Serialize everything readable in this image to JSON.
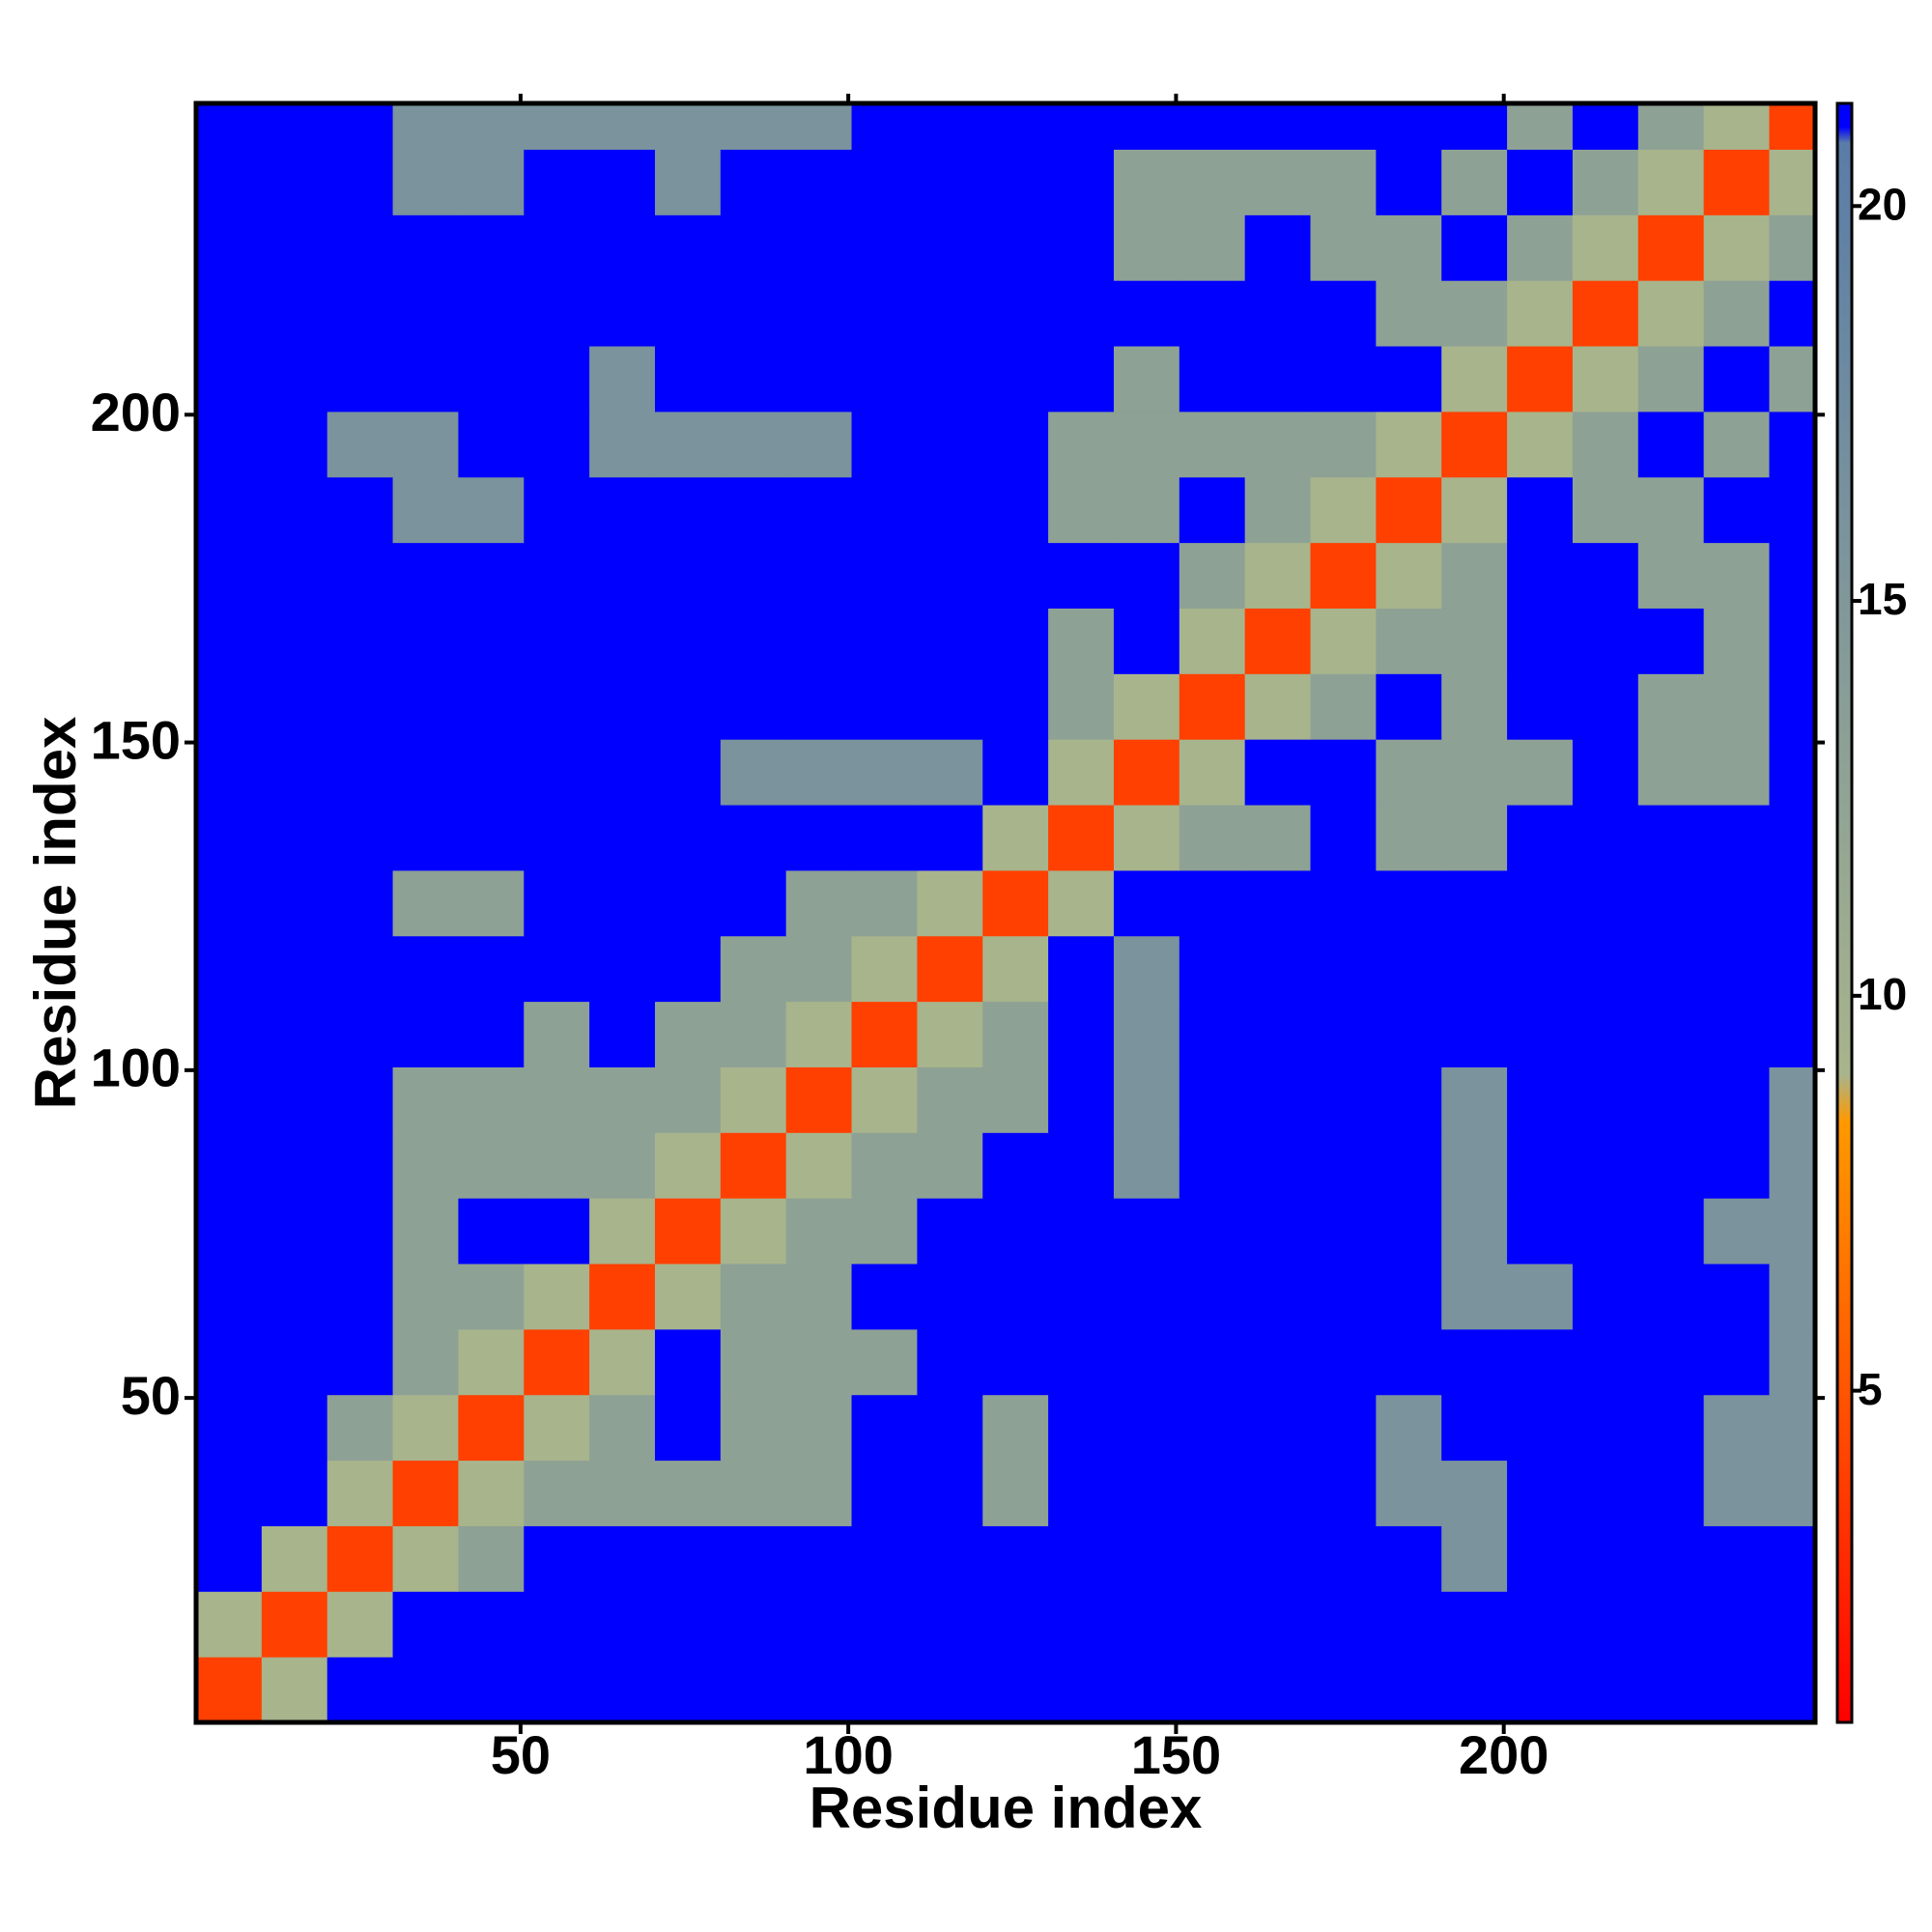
{
  "chart_data": {
    "type": "heatmap",
    "x_label": "Residue index",
    "y_label": "Residue index",
    "bins": [
      0.5,
      10.5,
      20.5,
      30.5,
      40.5,
      50.5,
      60.5,
      70.5,
      80.5,
      90.5,
      100.5,
      110.5,
      120.5,
      130.5,
      140.5,
      150.5,
      160.5,
      170.5,
      180.5,
      190.5,
      200.5,
      210.5,
      220.5,
      230.5,
      240.5,
      247.5
    ],
    "xlim": [
      0.5,
      247.5
    ],
    "ylim": [
      0.5,
      247.5
    ],
    "xticks": [
      50,
      100,
      150,
      200
    ],
    "yticks": [
      50,
      100,
      150,
      200
    ],
    "zlim": [
      0.8,
      21.3
    ],
    "zticks": [
      5,
      10,
      15,
      20
    ],
    "colorscale": [
      [
        0.8,
        "#ff0000"
      ],
      [
        8.4,
        "#ff9900"
      ],
      [
        9,
        "#a8b48c"
      ],
      [
        20.8,
        "#5a7ca8"
      ],
      [
        21,
        "#0000ff"
      ]
    ],
    "z": [
      [
        4,
        9,
        21,
        21,
        21,
        21,
        21,
        21,
        21,
        21,
        21,
        21,
        21,
        21,
        21,
        21,
        21,
        21,
        21,
        21,
        21,
        21,
        21,
        21,
        21
      ],
      [
        9,
        4,
        9,
        21,
        21,
        21,
        21,
        21,
        21,
        21,
        21,
        21,
        21,
        21,
        21,
        21,
        21,
        21,
        21,
        21,
        21,
        21,
        21,
        21,
        21
      ],
      [
        21,
        9,
        4,
        9,
        13,
        21,
        21,
        21,
        21,
        21,
        21,
        21,
        21,
        21,
        21,
        21,
        21,
        21,
        21,
        16,
        21,
        21,
        21,
        21,
        21
      ],
      [
        21,
        21,
        9,
        4,
        9,
        13,
        13,
        13,
        13,
        13,
        21,
        21,
        13,
        21,
        21,
        21,
        21,
        21,
        16,
        16,
        21,
        21,
        21,
        16,
        16
      ],
      [
        21,
        21,
        13,
        9,
        4,
        9,
        13,
        21,
        13,
        13,
        21,
        21,
        13,
        21,
        21,
        21,
        21,
        21,
        16,
        21,
        21,
        21,
        21,
        16,
        16
      ],
      [
        21,
        21,
        21,
        13,
        9,
        4,
        9,
        21,
        13,
        13,
        13,
        21,
        21,
        21,
        21,
        21,
        21,
        21,
        21,
        21,
        21,
        21,
        21,
        21,
        16
      ],
      [
        21,
        21,
        21,
        13,
        13,
        9,
        4,
        9,
        13,
        13,
        21,
        21,
        21,
        21,
        21,
        21,
        21,
        21,
        21,
        16,
        16,
        21,
        21,
        21,
        16
      ],
      [
        21,
        21,
        21,
        13,
        21,
        21,
        9,
        4,
        9,
        13,
        13,
        21,
        21,
        21,
        21,
        21,
        21,
        21,
        21,
        16,
        21,
        21,
        21,
        16,
        16
      ],
      [
        21,
        21,
        21,
        13,
        13,
        13,
        13,
        9,
        4,
        9,
        13,
        13,
        21,
        21,
        16,
        21,
        21,
        21,
        21,
        16,
        21,
        21,
        21,
        21,
        16
      ],
      [
        21,
        21,
        21,
        13,
        13,
        13,
        13,
        13,
        9,
        4,
        9,
        13,
        13,
        21,
        16,
        21,
        21,
        21,
        21,
        16,
        21,
        21,
        21,
        21,
        16
      ],
      [
        21,
        21,
        21,
        21,
        21,
        13,
        21,
        13,
        13,
        9,
        4,
        9,
        13,
        21,
        16,
        21,
        21,
        21,
        21,
        21,
        21,
        21,
        21,
        21,
        21
      ],
      [
        21,
        21,
        21,
        21,
        21,
        21,
        21,
        21,
        13,
        13,
        9,
        4,
        9,
        21,
        16,
        21,
        21,
        21,
        21,
        21,
        21,
        21,
        21,
        21,
        21
      ],
      [
        21,
        21,
        21,
        13,
        13,
        21,
        21,
        21,
        21,
        13,
        13,
        9,
        4,
        9,
        21,
        21,
        21,
        21,
        21,
        21,
        21,
        21,
        21,
        21,
        21
      ],
      [
        21,
        21,
        21,
        21,
        21,
        21,
        21,
        21,
        21,
        21,
        21,
        21,
        9,
        4,
        9,
        13,
        13,
        21,
        13,
        13,
        21,
        21,
        21,
        21,
        21
      ],
      [
        21,
        21,
        21,
        21,
        21,
        21,
        21,
        21,
        16,
        16,
        16,
        16,
        21,
        9,
        4,
        9,
        21,
        21,
        13,
        13,
        13,
        21,
        13,
        13,
        21
      ],
      [
        21,
        21,
        21,
        21,
        21,
        21,
        21,
        21,
        21,
        21,
        21,
        21,
        21,
        13,
        9,
        4,
        9,
        13,
        21,
        13,
        21,
        21,
        13,
        13,
        21
      ],
      [
        21,
        21,
        21,
        21,
        21,
        21,
        21,
        21,
        21,
        21,
        21,
        21,
        21,
        13,
        21,
        9,
        4,
        9,
        13,
        13,
        21,
        21,
        21,
        13,
        21
      ],
      [
        21,
        21,
        21,
        21,
        21,
        21,
        21,
        21,
        21,
        21,
        21,
        21,
        21,
        21,
        21,
        13,
        9,
        4,
        9,
        13,
        21,
        21,
        13,
        13,
        21
      ],
      [
        21,
        21,
        21,
        16,
        16,
        21,
        21,
        21,
        21,
        21,
        21,
        21,
        21,
        13,
        13,
        21,
        13,
        9,
        4,
        9,
        21,
        13,
        13,
        21,
        21
      ],
      [
        21,
        21,
        16,
        16,
        21,
        21,
        16,
        16,
        16,
        16,
        21,
        21,
        21,
        13,
        13,
        13,
        13,
        13,
        9,
        4,
        9,
        13,
        21,
        13,
        21
      ],
      [
        21,
        21,
        21,
        21,
        21,
        21,
        16,
        21,
        21,
        21,
        21,
        21,
        21,
        21,
        13,
        21,
        21,
        21,
        21,
        9,
        4,
        9,
        13,
        21,
        13
      ],
      [
        21,
        21,
        21,
        21,
        21,
        21,
        21,
        21,
        21,
        21,
        21,
        21,
        21,
        21,
        21,
        21,
        21,
        21,
        13,
        13,
        9,
        4,
        9,
        13,
        21
      ],
      [
        21,
        21,
        21,
        21,
        21,
        21,
        21,
        21,
        21,
        21,
        21,
        21,
        21,
        21,
        13,
        13,
        21,
        13,
        13,
        21,
        13,
        9,
        4,
        9,
        13
      ],
      [
        21,
        21,
        21,
        16,
        16,
        21,
        21,
        16,
        21,
        21,
        21,
        21,
        21,
        21,
        13,
        13,
        13,
        13,
        21,
        13,
        21,
        13,
        9,
        4,
        9
      ],
      [
        21,
        21,
        21,
        16,
        16,
        16,
        16,
        16,
        16,
        16,
        21,
        21,
        21,
        21,
        21,
        21,
        21,
        21,
        21,
        21,
        13,
        21,
        13,
        9,
        4
      ]
    ]
  }
}
